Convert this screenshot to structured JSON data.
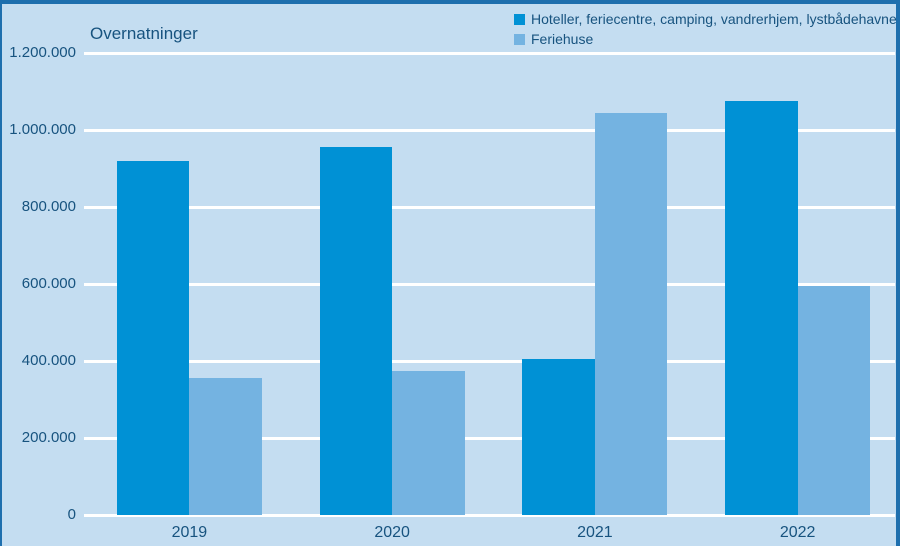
{
  "frame": {
    "border_color": "#1e6fae",
    "background_color": "#c4ddf1",
    "text_color": "#17537f",
    "gridline_color": "#ffffff"
  },
  "chart_data": {
    "type": "bar",
    "title": "Overnatninger",
    "categories": [
      "2019",
      "2020",
      "2021",
      "2022"
    ],
    "series": [
      {
        "name": "Hoteller, feriecentre, camping, vandrerhjem, lystbådehavne",
        "color": "#0091d5",
        "values": [
          920000,
          955000,
          405000,
          1075000
        ]
      },
      {
        "name": "Feriehuse",
        "color": "#74b3e1",
        "values": [
          355000,
          375000,
          1045000,
          595000
        ]
      }
    ],
    "xlabel": "",
    "ylabel": "",
    "ylim": [
      0,
      1200000
    ],
    "ytick_step": 200000,
    "ytick_labels": [
      "0",
      "200.000",
      "400.000",
      "600.000",
      "800.000",
      "1.000.000",
      "1.200.000"
    ],
    "grid": true,
    "legend_position": "top-right"
  }
}
